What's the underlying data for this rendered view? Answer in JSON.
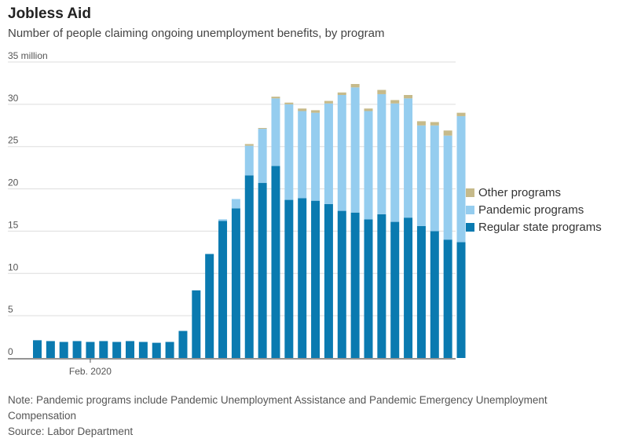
{
  "header": {
    "title": "Jobless Aid",
    "subtitle": "Number of people claiming ongoing unemployment benefits, by program"
  },
  "footer": {
    "note": "Note: Pandemic programs include Pandemic Unemployment Assistance and Pandemic Emergency Unemployment Compensation",
    "source": "Source: Labor Department"
  },
  "colors": {
    "regular": "#0a7ab0",
    "pandemic": "#95cdef",
    "other": "#c6ba8a",
    "grid": "#dddddd",
    "axis": "#555555"
  },
  "chart_data": {
    "type": "bar",
    "stacked": true,
    "title": "Jobless Aid",
    "subtitle": "Number of people claiming ongoing unemployment benefits, by program",
    "ylim": [
      0,
      35
    ],
    "ytick_values": [
      0,
      5,
      10,
      15,
      20,
      25,
      30,
      35
    ],
    "ytick_labels": [
      "0",
      "5",
      "10",
      "15",
      "20",
      "25",
      "30",
      "35 million"
    ],
    "x_label_text": "Feb. 2020",
    "x_label_index": 4,
    "grid": true,
    "legend_position": "right",
    "categories": [
      "",
      "",
      "",
      "",
      "",
      "",
      "",
      "",
      "",
      "",
      "",
      "",
      "",
      "",
      "",
      "",
      "",
      "",
      "",
      "",
      "",
      "",
      "",
      "",
      "",
      "",
      "",
      "",
      "",
      "",
      "",
      "",
      ""
    ],
    "series": [
      {
        "name": "Regular state programs",
        "color": "#0a7ab0",
        "values": [
          2.1,
          2.0,
          1.9,
          2.0,
          1.9,
          2.0,
          1.9,
          2.0,
          1.9,
          1.8,
          1.9,
          3.2,
          8.0,
          12.3,
          16.2,
          17.7,
          21.6,
          20.7,
          22.7,
          18.7,
          18.9,
          18.6,
          18.2,
          17.4,
          17.2,
          16.4,
          17.0,
          16.1,
          16.6,
          15.6,
          15.0,
          14.0,
          13.7
        ]
      },
      {
        "name": "Pandemic programs",
        "color": "#95cdef",
        "values": [
          0,
          0,
          0,
          0,
          0,
          0,
          0,
          0,
          0,
          0,
          0,
          0,
          0,
          0,
          0.2,
          1.1,
          3.5,
          6.4,
          8.0,
          11.3,
          10.3,
          10.4,
          11.9,
          13.7,
          14.8,
          12.8,
          14.2,
          14.0,
          14.1,
          11.9,
          12.5,
          12.3,
          14.9
        ]
      },
      {
        "name": "Other programs",
        "color": "#c6ba8a",
        "values": [
          0,
          0,
          0,
          0,
          0,
          0,
          0,
          0,
          0,
          0,
          0,
          0,
          0,
          0,
          0,
          0,
          0.2,
          0.1,
          0.2,
          0.2,
          0.3,
          0.3,
          0.3,
          0.3,
          0.4,
          0.3,
          0.5,
          0.4,
          0.4,
          0.5,
          0.4,
          0.6,
          0.4
        ]
      }
    ],
    "legend": [
      "Other programs",
      "Pandemic programs",
      "Regular state programs"
    ]
  }
}
